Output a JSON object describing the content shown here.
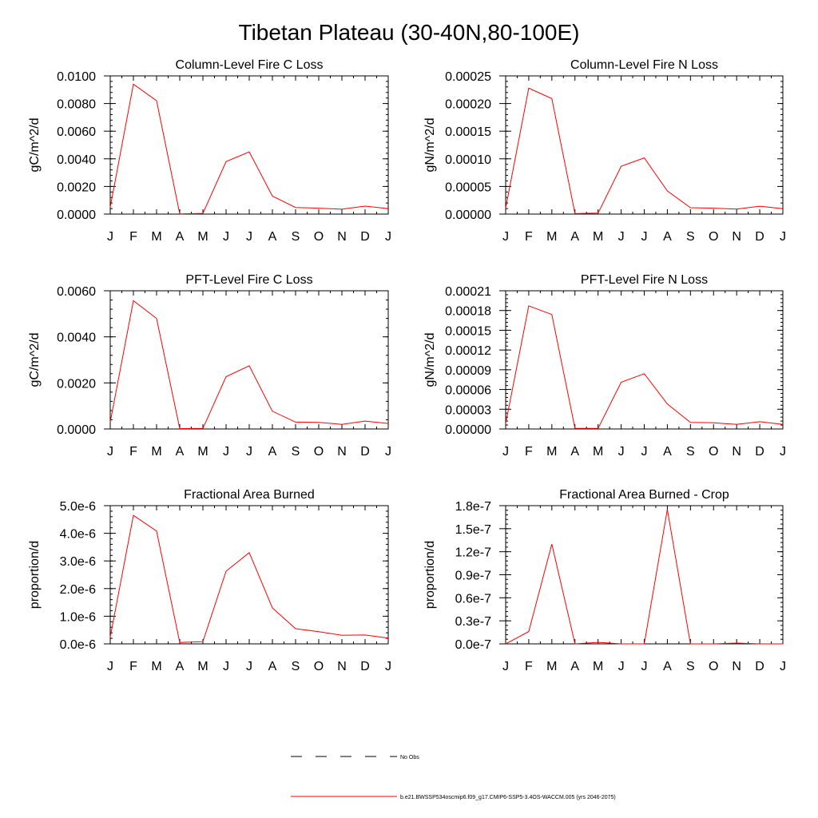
{
  "figure_title": "Tibetan Plateau (30-40N,80-100E)",
  "legend": {
    "obs_label": "No Obs",
    "model_label": "b.e21.BWSSP534oscmip6.f09_g17.CMIP6-SSP5-3.4OS-WACCM.005 (yrs 2046-2075)",
    "model_color": "#ff0000",
    "obs_color": "#000000"
  },
  "chart_data": [
    {
      "type": "line",
      "title": "Column-Level Fire C Loss",
      "ylabel": "gC/m^2/d",
      "categories": [
        "J",
        "F",
        "M",
        "A",
        "M",
        "J",
        "J",
        "A",
        "S",
        "O",
        "N",
        "D",
        "J"
      ],
      "ylim": [
        0,
        0.01
      ],
      "yticks": [
        "0.0000",
        "0.0020",
        "0.0040",
        "0.0060",
        "0.0080",
        "0.0100"
      ],
      "series": [
        {
          "values": [
            0.0005,
            0.0094,
            0.0082,
            2e-05,
            5e-05,
            0.0038,
            0.0045,
            0.0013,
            0.00048,
            0.00043,
            0.00035,
            0.00058,
            0.0004
          ]
        }
      ]
    },
    {
      "type": "line",
      "title": "Column-Level Fire N Loss",
      "ylabel": "gN/m^2/d",
      "categories": [
        "J",
        "F",
        "M",
        "A",
        "M",
        "J",
        "J",
        "A",
        "S",
        "O",
        "N",
        "D",
        "J"
      ],
      "ylim": [
        0,
        0.00028
      ],
      "yticks": [
        "0.00000",
        "0.00005",
        "0.00010",
        "0.00015",
        "0.00020",
        "0.00025"
      ],
      "series": [
        {
          "values": [
            1.2e-05,
            0.000255,
            0.000234,
            1e-06,
            2e-06,
            9.7e-05,
            0.000114,
            4.7e-05,
            1.3e-05,
            1.2e-05,
            1e-05,
            1.6e-05,
            1.1e-05
          ]
        }
      ]
    },
    {
      "type": "line",
      "title": "PFT-Level Fire C Loss",
      "ylabel": "gC/m^2/d",
      "categories": [
        "J",
        "F",
        "M",
        "A",
        "M",
        "J",
        "J",
        "A",
        "S",
        "O",
        "N",
        "D",
        "J"
      ],
      "ylim": [
        0,
        0.007
      ],
      "yticks": [
        "0.0000",
        "0.0020",
        "0.0040",
        "0.0060"
      ],
      "series": [
        {
          "values": [
            0.00035,
            0.0065,
            0.0056,
            2e-05,
            3e-05,
            0.00265,
            0.0032,
            0.0009,
            0.00035,
            0.00033,
            0.00023,
            0.0004,
            0.00028
          ]
        }
      ]
    },
    {
      "type": "line",
      "title": "PFT-Level Fire N Loss",
      "ylabel": "gN/m^2/d",
      "categories": [
        "J",
        "F",
        "M",
        "A",
        "M",
        "J",
        "J",
        "A",
        "S",
        "O",
        "N",
        "D",
        "J"
      ],
      "ylim": [
        0,
        0.00021
      ],
      "yticks": [
        "0.00000",
        "0.00003",
        "0.00006",
        "0.00009",
        "0.00012",
        "0.00015",
        "0.00018",
        "0.00021"
      ],
      "series": [
        {
          "values": [
            8e-06,
            0.000187,
            0.000174,
            1e-06,
            1e-06,
            7.1e-05,
            8.4e-05,
            3.8e-05,
            1e-05,
            9.5e-06,
            7e-06,
            1.1e-05,
            7e-06
          ]
        }
      ]
    },
    {
      "type": "line",
      "title": "Fractional Area Burned",
      "ylabel": "proportion/d",
      "categories": [
        "J",
        "F",
        "M",
        "A",
        "M",
        "J",
        "J",
        "A",
        "S",
        "O",
        "N",
        "D",
        "J"
      ],
      "ylim": [
        0,
        5e-06
      ],
      "yticks": [
        "0.0e-6",
        "1.0e-6",
        "2.0e-6",
        "3.0e-6",
        "4.0e-6",
        "5.0e-6"
      ],
      "series": [
        {
          "values": [
            2.5e-07,
            4.65e-06,
            4.08e-06,
            5e-08,
            8e-08,
            2.63e-06,
            3.3e-06,
            1.3e-06,
            5.5e-07,
            4.4e-07,
            3.1e-07,
            3.2e-07,
            2.1e-07
          ]
        }
      ]
    },
    {
      "type": "line",
      "title": "Fractional Area Burned - Crop",
      "ylabel": "proportion/d",
      "categories": [
        "J",
        "F",
        "M",
        "A",
        "M",
        "J",
        "J",
        "A",
        "S",
        "O",
        "N",
        "D",
        "J"
      ],
      "ylim": [
        0,
        1.8e-07
      ],
      "yticks": [
        "0.0e-7",
        "0.3e-7",
        "0.6e-7",
        "0.9e-7",
        "1.2e-7",
        "1.5e-7",
        "1.8e-7"
      ],
      "series": [
        {
          "values": [
            0,
            1.6e-08,
            1.3e-07,
            0,
            2e-09,
            0,
            0,
            1.75e-07,
            0,
            0,
            1e-09,
            0,
            0
          ]
        }
      ]
    }
  ]
}
